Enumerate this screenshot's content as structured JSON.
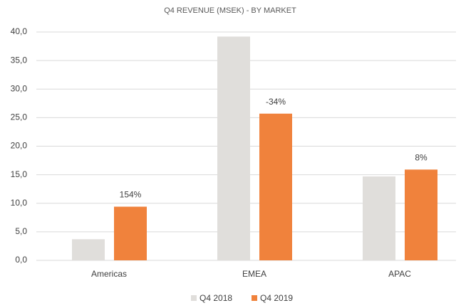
{
  "chart_data": {
    "type": "bar",
    "title": "Q4 REVENUE (MSEK) - BY MARKET",
    "categories": [
      "Americas",
      "EMEA",
      "APAC"
    ],
    "series": [
      {
        "name": "Q4 2018",
        "color": "#e0dedb",
        "values": [
          3.7,
          39.2,
          14.7
        ]
      },
      {
        "name": "Q4 2019",
        "color": "#f0823c",
        "values": [
          9.4,
          25.7,
          15.9
        ]
      }
    ],
    "annotations": [
      "154%",
      "-34%",
      "8%"
    ],
    "ylim": [
      0,
      40
    ],
    "yticks": [
      {
        "value": 0,
        "label": "0,0"
      },
      {
        "value": 5,
        "label": "5,0"
      },
      {
        "value": 10,
        "label": "10,0"
      },
      {
        "value": 15,
        "label": "15,0"
      },
      {
        "value": 20,
        "label": "20,0"
      },
      {
        "value": 25,
        "label": "25,0"
      },
      {
        "value": 30,
        "label": "30,0"
      },
      {
        "value": 35,
        "label": "35,0"
      },
      {
        "value": 40,
        "label": "40,0"
      }
    ],
    "grid": true,
    "legend": "bottom"
  }
}
